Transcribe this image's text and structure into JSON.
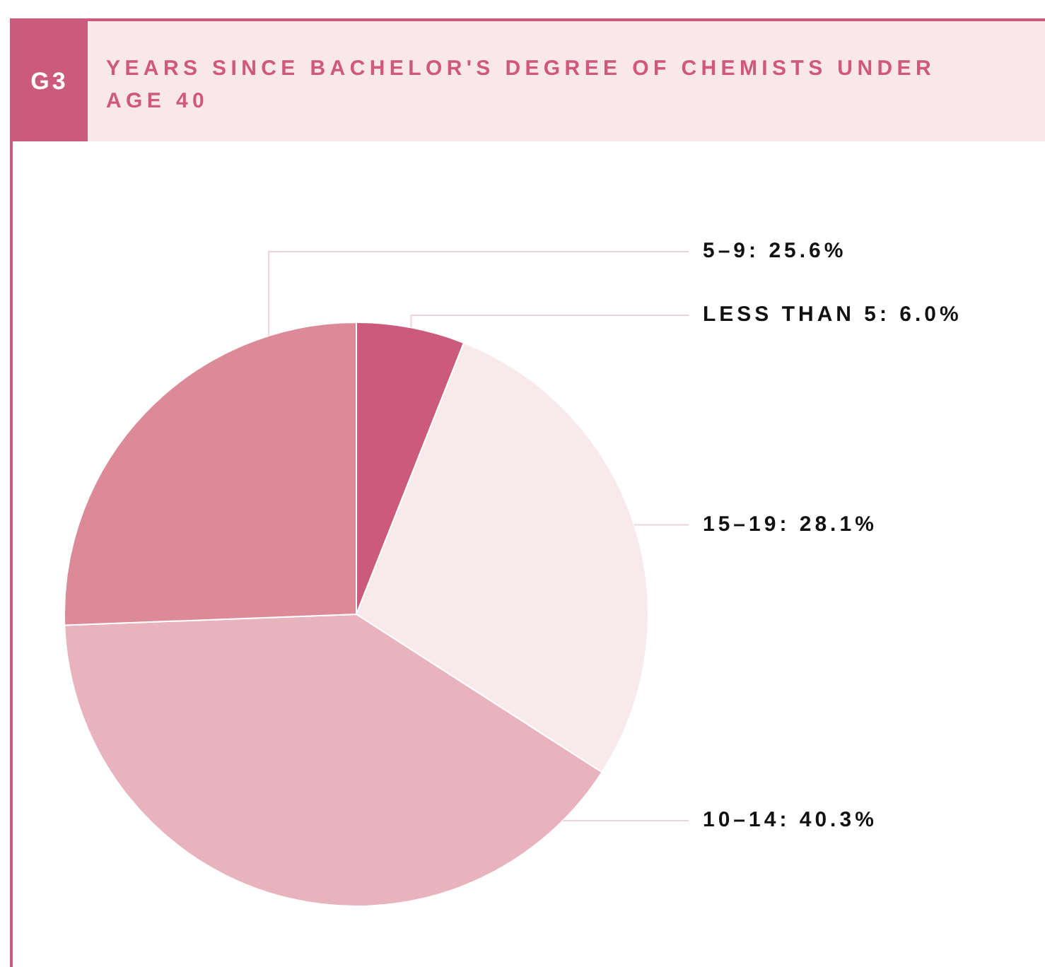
{
  "chart_data": {
    "type": "pie",
    "title": "YEARS SINCE BACHELOR'S DEGREE OF CHEMISTS UNDER AGE 40",
    "annotations": [
      "G3"
    ],
    "categories": [
      "LESS THAN 5",
      "15–19",
      "10–14",
      "5–9"
    ],
    "values": [
      6.0,
      28.1,
      40.3,
      25.6
    ],
    "value_labels": [
      "6.0%",
      "28.1%",
      "40.3%",
      "25.6%"
    ],
    "colors": [
      "#cc5a7c",
      "#f8eaec",
      "#e9b3bd",
      "#dc8a98"
    ],
    "legend": false
  }
}
